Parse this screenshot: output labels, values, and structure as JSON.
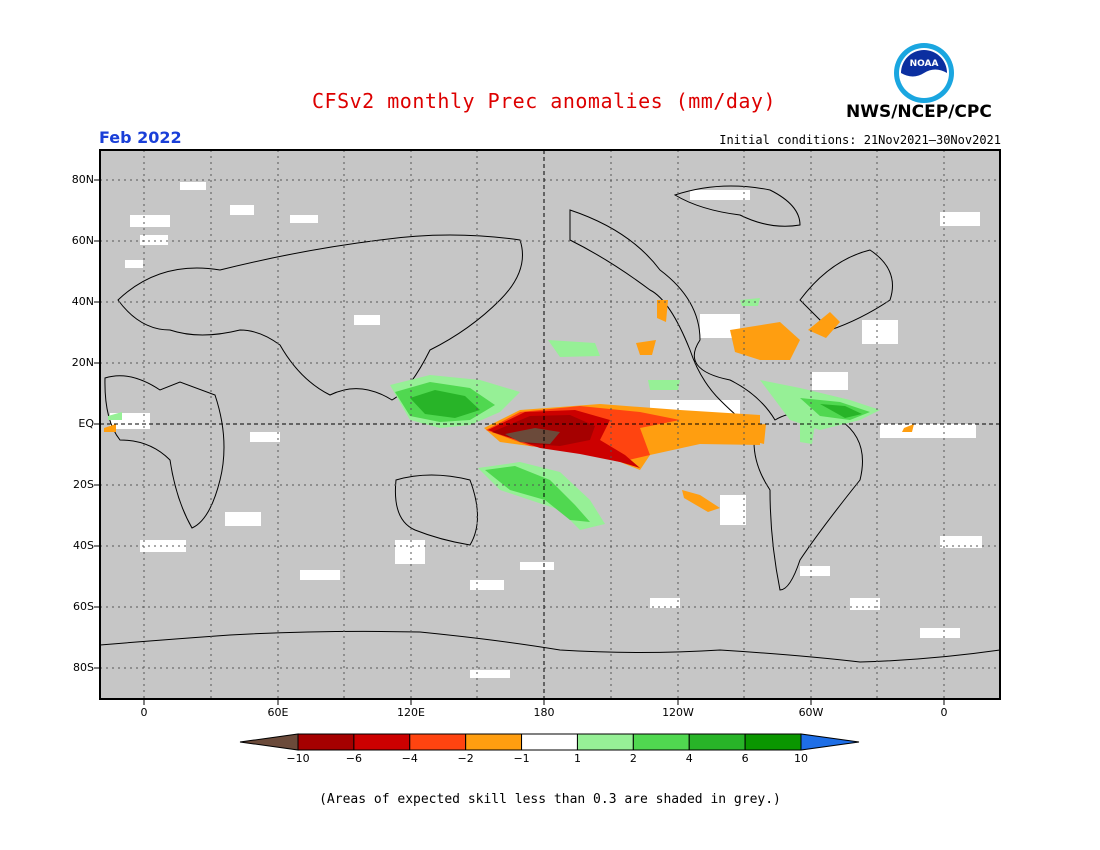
{
  "header": {
    "title": "CFSv2 monthly Prec anomalies (mm/day)",
    "agency": "NWS/NCEP/CPC",
    "logo_text": "NOAA",
    "period": "Feb 2022",
    "initial_conditions": "Initial conditions: 21Nov2021–30Nov2021"
  },
  "map": {
    "projection": "cylindrical equidistant",
    "center_longitude": "180",
    "background_color": "#c6c6c6",
    "gridlines": "dotted",
    "lat_labels": [
      "80N",
      "60N",
      "40N",
      "20N",
      "EQ",
      "20S",
      "40S",
      "60S",
      "80S"
    ],
    "lon_labels": [
      "0",
      "60E",
      "120E",
      "180",
      "120W",
      "60W",
      "0"
    ]
  },
  "colorbar": {
    "labels": [
      "−10",
      "−6",
      "−4",
      "−2",
      "−1",
      "1",
      "2",
      "4",
      "6",
      "10"
    ],
    "colors": [
      "#6b4a3a",
      "#a50000",
      "#cc0000",
      "#ff4410",
      "#ff9e10",
      "#ffffff",
      "#96f096",
      "#50d850",
      "#28b428",
      "#0a9600",
      "#1e6ee6"
    ]
  },
  "footnote": "(Areas of expected skill less than 0.3 are shaded in grey.)"
}
